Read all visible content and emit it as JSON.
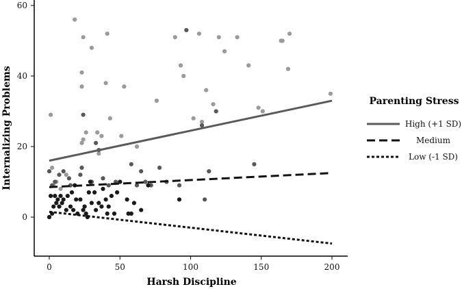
{
  "chart_data": {
    "type": "scatter",
    "xlabel": "Harsh Discipline",
    "ylabel": "Internalizing Problems",
    "xlim": [
      -5,
      210
    ],
    "ylim": [
      -10,
      60
    ],
    "xticks": [
      "0",
      "50",
      "100",
      "150",
      "200"
    ],
    "yticks": [
      "0",
      "20",
      "40",
      "60"
    ],
    "legend": {
      "title": "Parenting Stress",
      "placement": "right"
    },
    "lines": [
      {
        "name": "High (+1 SD)",
        "style": "solid",
        "color": "#5a5a5a",
        "x": [
          0,
          200
        ],
        "y": [
          16,
          33
        ]
      },
      {
        "name": "Medium",
        "style": "dashed",
        "color": "#111111",
        "x": [
          0,
          200
        ],
        "y": [
          8.5,
          12.5
        ]
      },
      {
        "name": "Low (-1 SD)",
        "style": "dotted",
        "color": "#111111",
        "x": [
          0,
          200
        ],
        "y": [
          1.5,
          -7.5
        ]
      }
    ],
    "series": [
      {
        "name": "High (+1 SD)",
        "color": "#9a9a9a",
        "points": [
          [
            1,
            29
          ],
          [
            2,
            14
          ],
          [
            3,
            9
          ],
          [
            5,
            10
          ],
          [
            8,
            8
          ],
          [
            12,
            12
          ],
          [
            18,
            56
          ],
          [
            23,
            41
          ],
          [
            23,
            37
          ],
          [
            24,
            51
          ],
          [
            24,
            22
          ],
          [
            23,
            21
          ],
          [
            26,
            24
          ],
          [
            30,
            48
          ],
          [
            34,
            24
          ],
          [
            37,
            23
          ],
          [
            35,
            18
          ],
          [
            40,
            38
          ],
          [
            41,
            52
          ],
          [
            43,
            28
          ],
          [
            51,
            23
          ],
          [
            53,
            37
          ],
          [
            62,
            20
          ],
          [
            76,
            33
          ],
          [
            89,
            51
          ],
          [
            93,
            43
          ],
          [
            95,
            40
          ],
          [
            102,
            28
          ],
          [
            106,
            52
          ],
          [
            108,
            27
          ],
          [
            111,
            36
          ],
          [
            116,
            32
          ],
          [
            120,
            51
          ],
          [
            124,
            47
          ],
          [
            133,
            51
          ],
          [
            141,
            43
          ],
          [
            148,
            31
          ],
          [
            151,
            30
          ],
          [
            164,
            50
          ],
          [
            165,
            50
          ],
          [
            169,
            42
          ],
          [
            170,
            52
          ],
          [
            199,
            35
          ]
        ]
      },
      {
        "name": "Medium",
        "color": "#585858",
        "points": [
          [
            0,
            13
          ],
          [
            2,
            9
          ],
          [
            4,
            10
          ],
          [
            7,
            12
          ],
          [
            10,
            13
          ],
          [
            14,
            11
          ],
          [
            15,
            9
          ],
          [
            22,
            12
          ],
          [
            23,
            14
          ],
          [
            24,
            29
          ],
          [
            30,
            10
          ],
          [
            33,
            21
          ],
          [
            35,
            19
          ],
          [
            38,
            11
          ],
          [
            42,
            9
          ],
          [
            47,
            10
          ],
          [
            58,
            15
          ],
          [
            62,
            9
          ],
          [
            65,
            13
          ],
          [
            68,
            10
          ],
          [
            72,
            9
          ],
          [
            78,
            14
          ],
          [
            83,
            10
          ],
          [
            92,
            9
          ],
          [
            97,
            53
          ],
          [
            108,
            26
          ],
          [
            110,
            5
          ],
          [
            113,
            13
          ],
          [
            118,
            30
          ],
          [
            145,
            15
          ]
        ]
      },
      {
        "name": "Low (-1 SD)",
        "color": "#1a1a1a",
        "points": [
          [
            0,
            0
          ],
          [
            1,
            6
          ],
          [
            2,
            1
          ],
          [
            3,
            3
          ],
          [
            4,
            6
          ],
          [
            5,
            4
          ],
          [
            6,
            5
          ],
          [
            7,
            3
          ],
          [
            8,
            6
          ],
          [
            9,
            4
          ],
          [
            10,
            5
          ],
          [
            12,
            2
          ],
          [
            13,
            6
          ],
          [
            15,
            3
          ],
          [
            16,
            7
          ],
          [
            17,
            2
          ],
          [
            18,
            9
          ],
          [
            19,
            5
          ],
          [
            20,
            1
          ],
          [
            22,
            5
          ],
          [
            24,
            2
          ],
          [
            25,
            3
          ],
          [
            26,
            1
          ],
          [
            27,
            0
          ],
          [
            28,
            7
          ],
          [
            29,
            10
          ],
          [
            30,
            4
          ],
          [
            32,
            7
          ],
          [
            33,
            2
          ],
          [
            35,
            4
          ],
          [
            37,
            3
          ],
          [
            38,
            8
          ],
          [
            40,
            5
          ],
          [
            41,
            1
          ],
          [
            42,
            3
          ],
          [
            44,
            6
          ],
          [
            46,
            1
          ],
          [
            48,
            7
          ],
          [
            50,
            10
          ],
          [
            55,
            5
          ],
          [
            56,
            1
          ],
          [
            58,
            1
          ],
          [
            60,
            4
          ],
          [
            65,
            2
          ],
          [
            70,
            9
          ],
          [
            92,
            5
          ]
        ]
      }
    ]
  }
}
